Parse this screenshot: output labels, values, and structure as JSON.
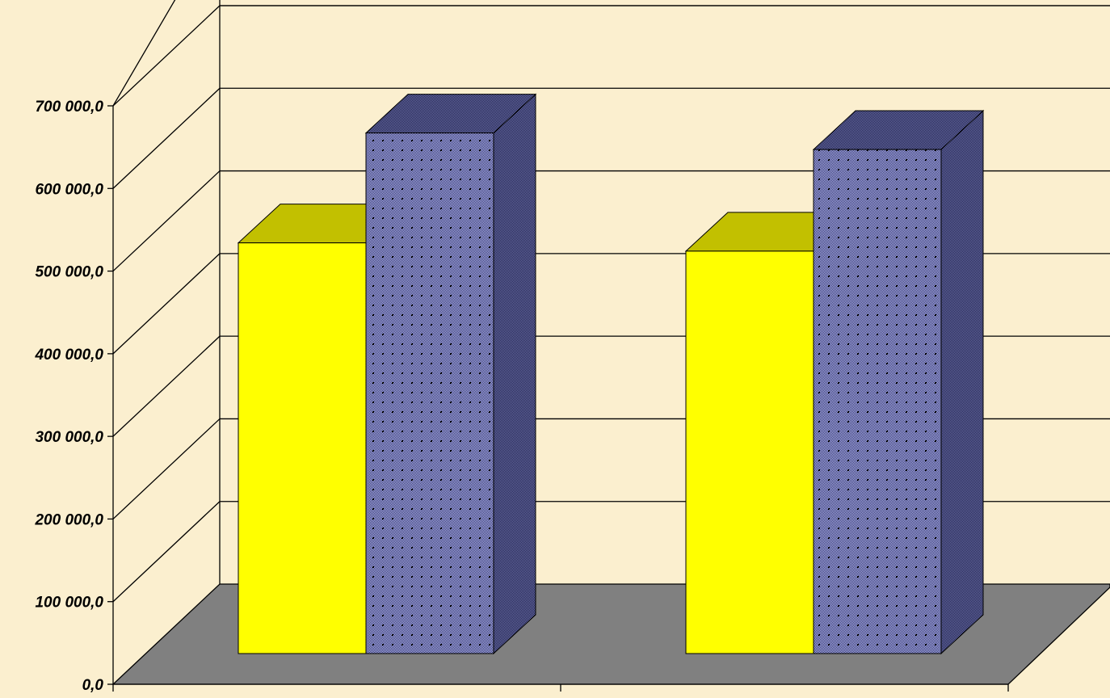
{
  "chart_data": {
    "type": "bar",
    "style": "3d-clustered-column",
    "categories": [
      "",
      ""
    ],
    "series": [
      {
        "values": [
          497000,
          487000
        ],
        "color": "#ffff00",
        "top_color": "#c2c000",
        "pattern": "solid"
      },
      {
        "values": [
          630000,
          610000
        ],
        "color": "#9a9fe6",
        "side_color": "#55598f",
        "top_color": "#6b70b8",
        "pattern": "dotted-check"
      }
    ],
    "yticks": [
      "0,0",
      "100 000,0",
      "200 000,0",
      "300 000,0",
      "400 000,0",
      "500 000,0",
      "600 000,0",
      "700 000,0"
    ],
    "ylim": [
      0,
      700000
    ],
    "grid": true,
    "legend": "none",
    "background": "#fbefcf",
    "floor_color": "#808080",
    "title": "",
    "xlabel": "",
    "ylabel": ""
  }
}
